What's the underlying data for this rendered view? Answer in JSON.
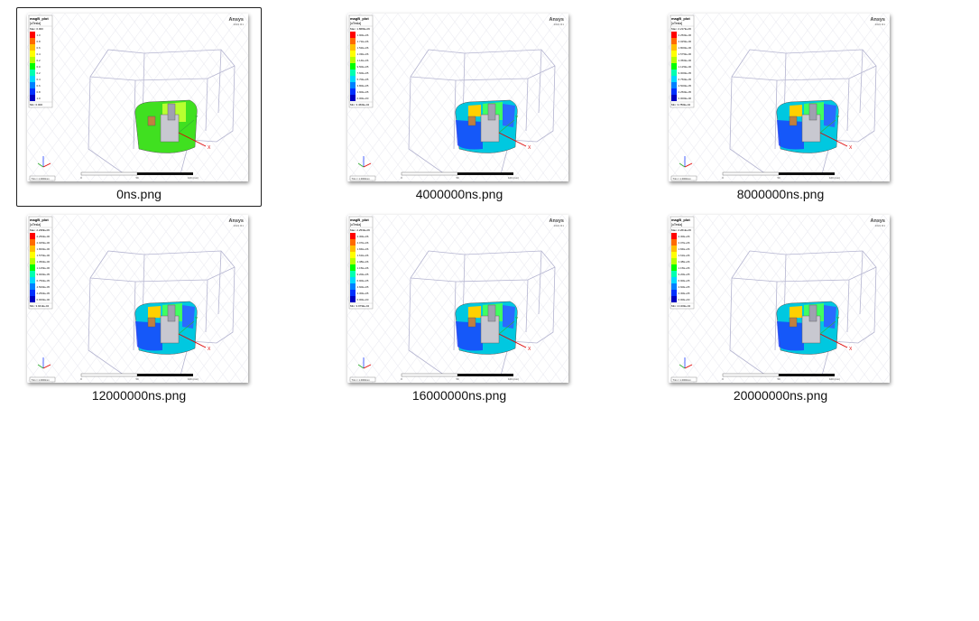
{
  "files": [
    {
      "name": "0ns.png",
      "selected": true,
      "legend": {
        "title": "magB_plot",
        "unit": "[uTesla]",
        "max": "Max: 0.000",
        "min": "Min: 0.000",
        "labels": [
          "1.0",
          "0.8",
          "0.6",
          "0.4",
          "0.2",
          "0.0",
          "0.2",
          "0.4",
          "0.6",
          "0.8",
          "1.0"
        ]
      },
      "field": "uniform"
    },
    {
      "name": "4000000ns.png",
      "selected": false,
      "legend": {
        "title": "magB_plot",
        "unit": "[uTesla]",
        "max": "Max: 1.868E+06",
        "min": "Min: 3.460E+04",
        "labels": [
          "1.90E+06",
          "1.71E+06",
          "1.52E+06",
          "1.33E+06",
          "1.14E+06",
          "9.50E+05",
          "7.60E+05",
          "5.70E+05",
          "3.80E+05",
          "1.90E+05",
          "0.00E+00"
        ]
      },
      "field": "varied"
    },
    {
      "name": "8000000ns.png",
      "selected": false,
      "legend": {
        "title": "magB_plot",
        "unit": "[uTesla]",
        "max": "Max: 2.217E+06",
        "min": "Min: 3.780E+04",
        "labels": [
          "2.250E+06",
          "2.025E+06",
          "1.800E+06",
          "1.575E+06",
          "1.350E+06",
          "1.125E+06",
          "9.000E+05",
          "6.750E+05",
          "4.500E+05",
          "2.250E+05",
          "0.000E+00"
        ]
      },
      "field": "varied"
    },
    {
      "name": "12000000ns.png",
      "selected": false,
      "legend": {
        "title": "magB_plot",
        "unit": "[uTesla]",
        "max": "Max: 2.238E+06",
        "min": "Min: 3.941E+04",
        "labels": [
          "2.250E+06",
          "2.025E+06",
          "1.800E+06",
          "1.575E+06",
          "1.350E+06",
          "1.125E+06",
          "9.000E+05",
          "6.750E+05",
          "4.500E+05",
          "2.250E+05",
          "0.000E+00"
        ]
      },
      "field": "varied"
    },
    {
      "name": "16000000ns.png",
      "selected": false,
      "legend": {
        "title": "magB_plot",
        "unit": "[uTesla]",
        "max": "Max: 2.253E+06",
        "min": "Min: 3.979E+04",
        "labels": [
          "2.30E+06",
          "2.07E+06",
          "1.84E+06",
          "1.61E+06",
          "1.38E+06",
          "1.15E+06",
          "9.20E+05",
          "6.90E+05",
          "4.60E+05",
          "2.30E+05",
          "0.00E+00"
        ]
      },
      "field": "varied"
    },
    {
      "name": "20000000ns.png",
      "selected": false,
      "legend": {
        "title": "magB_plot",
        "unit": "[uTesla]",
        "max": "Max: 2.261E+06",
        "min": "Min: 4.130E+04",
        "labels": [
          "2.30E+06",
          "2.07E+06",
          "1.84E+06",
          "1.61E+06",
          "1.38E+06",
          "1.15E+06",
          "9.20E+05",
          "6.90E+05",
          "4.60E+05",
          "2.30E+05",
          "0.00E+00"
        ]
      },
      "field": "varied"
    }
  ],
  "viewer": {
    "brand": "Ansys",
    "version": "2021 R1",
    "scale_ticks": [
      "0",
      "50",
      "100 (mm)"
    ],
    "zoom_text": "Trim = 1.0000mm"
  },
  "legend_colors": [
    "#ff0000",
    "#ff6a00",
    "#ffbf00",
    "#ffff00",
    "#b4ff00",
    "#00ff00",
    "#00ffb0",
    "#00d8ff",
    "#0080ff",
    "#0030ff",
    "#0000c0"
  ]
}
